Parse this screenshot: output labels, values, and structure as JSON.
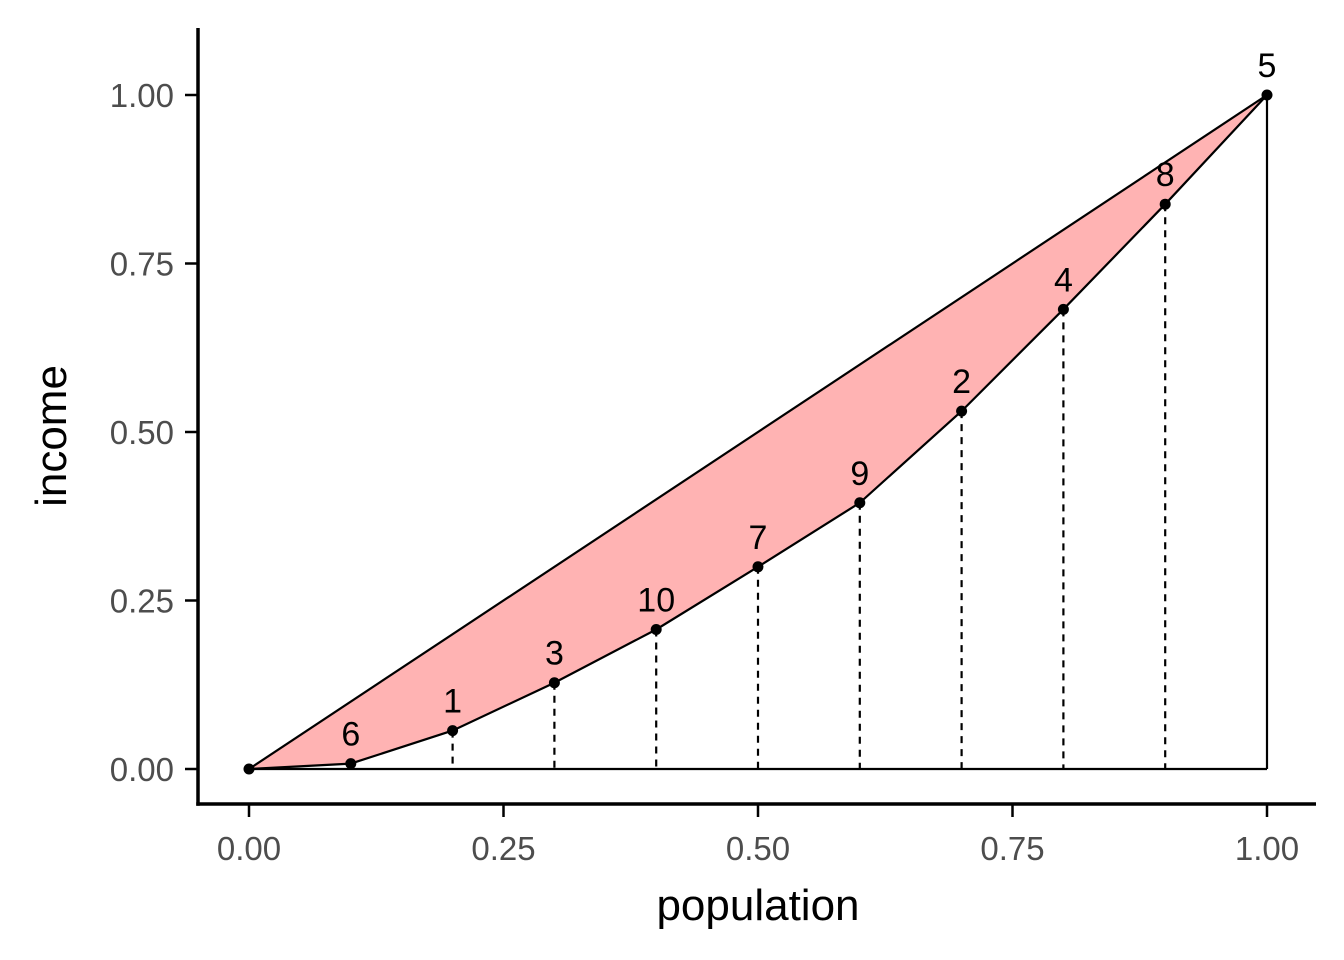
{
  "chart_data": {
    "type": "area",
    "xlabel": "population",
    "ylabel": "income",
    "xlim": [
      -0.05,
      1.05
    ],
    "ylim": [
      -0.05,
      1.1
    ],
    "x_ticks": [
      "0.00",
      "0.25",
      "0.50",
      "0.75",
      "1.00"
    ],
    "y_ticks": [
      "0.00",
      "0.25",
      "0.50",
      "0.75",
      "1.00"
    ],
    "grid": false,
    "legend": "none",
    "fill_color": "#ffb3b3",
    "line_color": "#000000",
    "equality_line": [
      [
        0,
        0
      ],
      [
        1,
        1
      ]
    ],
    "lorenz_points": [
      {
        "x": 0.0,
        "y": 0.0,
        "label": ""
      },
      {
        "x": 0.1,
        "y": 0.008,
        "label": "6"
      },
      {
        "x": 0.2,
        "y": 0.057,
        "label": "1"
      },
      {
        "x": 0.3,
        "y": 0.128,
        "label": "3"
      },
      {
        "x": 0.4,
        "y": 0.207,
        "label": "10"
      },
      {
        "x": 0.5,
        "y": 0.3,
        "label": "7"
      },
      {
        "x": 0.6,
        "y": 0.395,
        "label": "9"
      },
      {
        "x": 0.7,
        "y": 0.531,
        "label": "2"
      },
      {
        "x": 0.8,
        "y": 0.682,
        "label": "4"
      },
      {
        "x": 0.9,
        "y": 0.838,
        "label": "8"
      },
      {
        "x": 1.0,
        "y": 1.0,
        "label": "5"
      }
    ]
  }
}
